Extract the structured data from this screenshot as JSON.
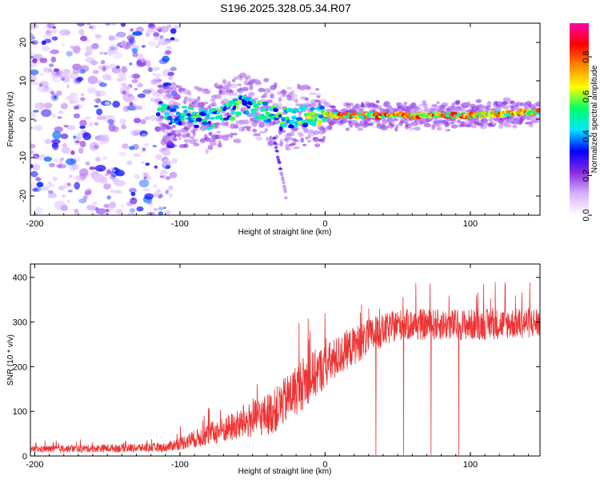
{
  "figure": {
    "title": "S196.2025.328.05.34.R07"
  },
  "chart_data": [
    {
      "type": "heatmap",
      "xlabel": "Height of straight line (km)",
      "ylabel": "Frequency (Hz)",
      "xlim": [
        -203,
        148
      ],
      "ylim": [
        -25,
        25
      ],
      "xticks": [
        -200,
        -100,
        0,
        100
      ],
      "yticks": [
        -20,
        -10,
        0,
        10,
        20
      ],
      "colorbar": {
        "label": "Normalized spectral amplitude",
        "range": [
          0,
          0.97
        ],
        "ticks": [
          0.0,
          0.2,
          0.4,
          0.6,
          0.8
        ],
        "colormap": [
          "#ffffff",
          "#d9b3ff",
          "#8a2be2",
          "#0000ff",
          "#00e5ff",
          "#00ff66",
          "#ffff00",
          "#ff8800",
          "#ff0000",
          "#ff00aa"
        ]
      },
      "features": {
        "noise_region_x": [
          -203,
          -110
        ],
        "noise_density": 0.35,
        "band_frequency_hz": [
          {
            "x": -110,
            "f": 1.5
          },
          {
            "x": -80,
            "f": 0
          },
          {
            "x": -55,
            "f": 4
          },
          {
            "x": -30,
            "f": 0
          },
          {
            "x": -5,
            "f": 1
          },
          {
            "x": 20,
            "f": 1
          },
          {
            "x": 60,
            "f": 1
          },
          {
            "x": 100,
            "f": 1
          },
          {
            "x": 148,
            "f": 2
          }
        ],
        "tail_segment": [
          {
            "x": -35,
            "f": -5
          },
          {
            "x": -27,
            "f": -20
          }
        ]
      }
    },
    {
      "type": "line",
      "xlabel": "Height of straight line (km)",
      "ylabel": "SNR (10 * v/v)",
      "xlim": [
        -203,
        148
      ],
      "ylim": [
        0,
        430
      ],
      "xticks": [
        -200,
        -100,
        0,
        100
      ],
      "yticks": [
        0,
        100,
        200,
        300,
        400
      ],
      "color": "#ee3333",
      "envelope": [
        {
          "x": -203,
          "base": 12,
          "amp": 15
        },
        {
          "x": -110,
          "base": 15,
          "amp": 20
        },
        {
          "x": -90,
          "base": 30,
          "amp": 40
        },
        {
          "x": -60,
          "base": 55,
          "amp": 70
        },
        {
          "x": -35,
          "base": 80,
          "amp": 100
        },
        {
          "x": -15,
          "base": 140,
          "amp": 120
        },
        {
          "x": 0,
          "base": 180,
          "amp": 100
        },
        {
          "x": 15,
          "base": 220,
          "amp": 90
        },
        {
          "x": 30,
          "base": 250,
          "amp": 80
        },
        {
          "x": 50,
          "base": 280,
          "amp": 70
        },
        {
          "x": 100,
          "base": 280,
          "amp": 70
        },
        {
          "x": 148,
          "base": 285,
          "amp": 70
        }
      ],
      "dropouts_x": [
        35,
        54,
        73,
        92
      ],
      "peak_y": 425
    }
  ]
}
